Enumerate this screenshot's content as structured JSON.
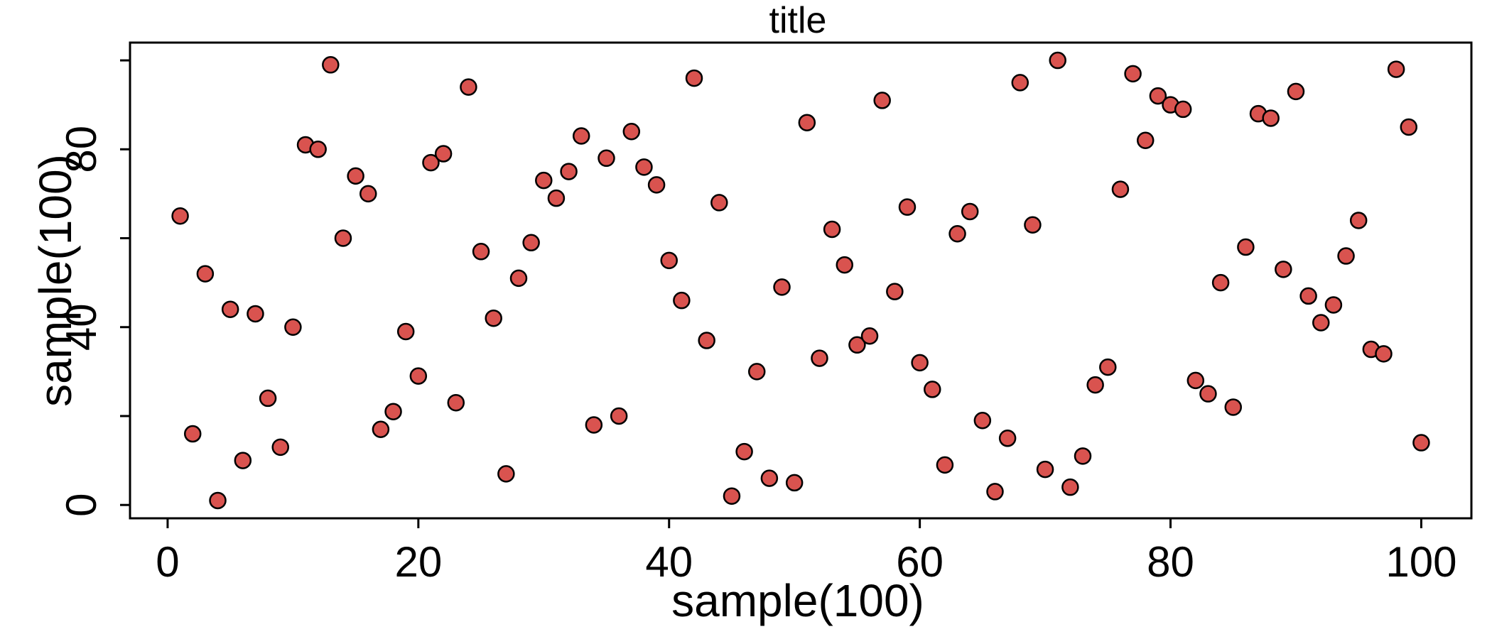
{
  "chart_data": {
    "type": "scatter",
    "title": "title",
    "xlabel": "sample(100)",
    "ylabel": "sample(100)",
    "xlim": [
      -3,
      104
    ],
    "ylim": [
      -3,
      104
    ],
    "x_ticks": [
      0,
      20,
      40,
      60,
      80,
      100
    ],
    "x_tick_labels": [
      "0",
      "20",
      "40",
      "60",
      "80",
      "100"
    ],
    "y_ticks": [
      0,
      20,
      40,
      60,
      80,
      100
    ],
    "y_tick_labels": [
      "0",
      "",
      "40",
      "",
      "80",
      ""
    ],
    "grid": false,
    "marker_color": "#d9534f",
    "marker_edge_color": "#000000",
    "series": [
      {
        "x": [
          1,
          2,
          3,
          4,
          5,
          6,
          7,
          8,
          9,
          10,
          11,
          12,
          13,
          14,
          15,
          16,
          17,
          18,
          19,
          20,
          21,
          22,
          23,
          24,
          25,
          26,
          27,
          28,
          29,
          30,
          31,
          32,
          33,
          34,
          35,
          36,
          37,
          38,
          39,
          40,
          41,
          42,
          43,
          44,
          45,
          46,
          47,
          48,
          49,
          50,
          51,
          52,
          53,
          54,
          55,
          56,
          57,
          58,
          59,
          60,
          61,
          62,
          63,
          64,
          65,
          66,
          67,
          68,
          69,
          70,
          71,
          72,
          73,
          74,
          75,
          76,
          77,
          78,
          79,
          80,
          81,
          82,
          83,
          84,
          85,
          86,
          87,
          88,
          89,
          90,
          91,
          92,
          93,
          94,
          95,
          96,
          97,
          98,
          99,
          100
        ],
        "y": [
          65,
          16,
          52,
          1,
          44,
          10,
          43,
          24,
          13,
          40,
          81,
          80,
          99,
          60,
          74,
          70,
          17,
          21,
          39,
          29,
          77,
          79,
          23,
          94,
          57,
          42,
          7,
          51,
          59,
          73,
          69,
          75,
          83,
          18,
          78,
          20,
          84,
          76,
          72,
          55,
          46,
          96,
          37,
          68,
          2,
          12,
          30,
          6,
          49,
          5,
          86,
          33,
          62,
          54,
          36,
          38,
          91,
          48,
          67,
          32,
          26,
          9,
          61,
          66,
          19,
          3,
          15,
          95,
          63,
          8,
          100,
          4,
          11,
          27,
          31,
          71,
          97,
          82,
          92,
          90,
          89,
          28,
          25,
          50,
          22,
          58,
          88,
          87,
          53,
          93,
          47,
          41,
          45,
          56,
          64,
          35,
          34,
          98,
          85,
          14
        ]
      }
    ]
  }
}
